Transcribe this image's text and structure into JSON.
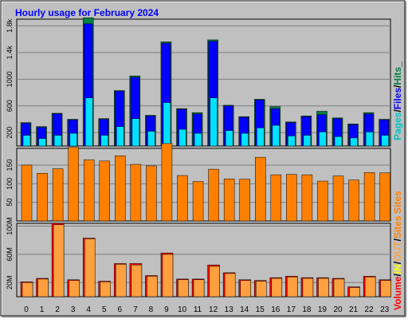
{
  "chart_data": [
    {
      "type": "bar",
      "title": "Hourly usage for February 2024",
      "categories": [
        "0",
        "1",
        "2",
        "3",
        "4",
        "5",
        "6",
        "7",
        "8",
        "9",
        "10",
        "11",
        "12",
        "13",
        "14",
        "15",
        "16",
        "17",
        "18",
        "19",
        "20",
        "21",
        "22",
        "23"
      ],
      "ylim": [
        0,
        1900
      ],
      "yticks": [
        200,
        600,
        1000,
        1400,
        1800
      ],
      "ytick_labels": [
        "200",
        "600",
        "1000",
        "1.4k",
        "1.8k"
      ],
      "legend": [
        "Pages",
        "/",
        "Files",
        "/",
        "Hits",
        "_"
      ],
      "grid": true,
      "series": [
        {
          "name": "Hits",
          "color": "#008040",
          "values": [
            350,
            290,
            490,
            400,
            1920,
            410,
            830,
            1050,
            460,
            1560,
            560,
            500,
            1590,
            610,
            440,
            700,
            590,
            360,
            450,
            520,
            420,
            330,
            500,
            400
          ]
        },
        {
          "name": "Files",
          "color": "#0000ff",
          "values": [
            340,
            280,
            480,
            390,
            1830,
            400,
            820,
            1030,
            450,
            1540,
            550,
            480,
            1570,
            600,
            430,
            690,
            560,
            350,
            440,
            470,
            410,
            320,
            480,
            390
          ]
        },
        {
          "name": "Pages",
          "color": "#00e0ff",
          "values": [
            160,
            110,
            160,
            190,
            720,
            160,
            290,
            410,
            220,
            650,
            250,
            190,
            720,
            230,
            190,
            270,
            310,
            150,
            160,
            210,
            140,
            120,
            210,
            160
          ]
        }
      ]
    },
    {
      "type": "bar",
      "categories": [
        "0",
        "1",
        "2",
        "3",
        "4",
        "5",
        "6",
        "7",
        "8",
        "9",
        "10",
        "11",
        "12",
        "13",
        "14",
        "15",
        "16",
        "17",
        "18",
        "19",
        "20",
        "21",
        "22",
        "23"
      ],
      "ylim": [
        0,
        195
      ],
      "yticks": [
        50,
        100,
        150
      ],
      "ytick_labels": [
        "50",
        "100",
        "150"
      ],
      "legend": [
        "Sites"
      ],
      "grid": true,
      "series": [
        {
          "name": "Sites",
          "color": "#ff8000",
          "values": [
            150,
            128,
            140,
            198,
            164,
            161,
            175,
            152,
            148,
            208,
            122,
            106,
            139,
            113,
            112,
            171,
            124,
            125,
            124,
            107,
            121,
            110,
            130,
            129
          ]
        }
      ]
    },
    {
      "type": "bar",
      "categories": [
        "0",
        "1",
        "2",
        "3",
        "4",
        "5",
        "6",
        "7",
        "8",
        "9",
        "10",
        "11",
        "12",
        "13",
        "14",
        "15",
        "16",
        "17",
        "18",
        "19",
        "20",
        "21",
        "22",
        "23"
      ],
      "ylim": [
        0,
        104
      ],
      "yticks": [
        20,
        60,
        100
      ],
      "ytick_labels": [
        "20M",
        "60M",
        "100M"
      ],
      "legend": [
        "Volume",
        "/",
        "IN",
        "/",
        "OUT",
        "/",
        "Sites"
      ],
      "grid": true,
      "series": [
        {
          "name": "Volume",
          "color": "#ff0000",
          "values": [
            21,
            26,
            104,
            24,
            83,
            22,
            47,
            47,
            30,
            62,
            25,
            25,
            45,
            34,
            24,
            23,
            27,
            29,
            27,
            27,
            26,
            14,
            29,
            24
          ]
        },
        {
          "name": "OUT",
          "color": "#ffa040",
          "values": [
            20,
            25,
            102,
            23,
            82,
            21,
            46,
            45,
            29,
            60,
            24,
            24,
            43,
            33,
            23,
            22,
            26,
            28,
            26,
            26,
            25,
            13,
            28,
            23
          ]
        }
      ]
    }
  ],
  "colors": {
    "frame_fill": "#c0c0c0",
    "title_text": "#0000ff",
    "plot_background": "#c0c0c0",
    "sites_legend": "#ff8000",
    "in_legend": "#ffff00",
    "out_legend": "#ffa040",
    "volume_legend": "#ff0000",
    "pages_legend": "#00c0c0",
    "files_legend": "#0000ff",
    "hits_legend": "#008040"
  }
}
